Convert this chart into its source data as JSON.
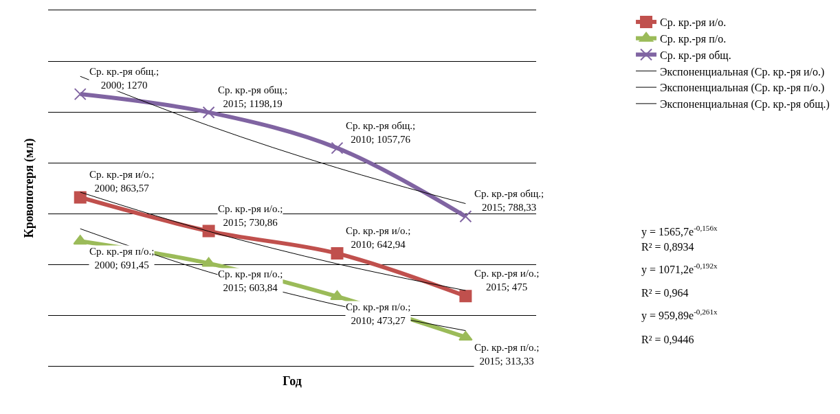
{
  "chart_data": {
    "type": "line",
    "xlabel": "Год",
    "ylabel": "Кровопотеря (мл)",
    "categories": [
      null,
      null,
      null,
      null
    ],
    "ylim": [
      200,
      1600
    ],
    "grid": "y",
    "legend": "right",
    "tick_labels": false,
    "series": [
      {
        "name": "Ср. кр.-ря и/о.",
        "color": "#c0504d",
        "marker": "square",
        "values": [
          863.57,
          730.86,
          642.94,
          475
        ],
        "value_labels": [
          "Ср. кр.-ря и/о.; 2000; 863,57",
          "Ср. кр.-ря и/о.; 2015; 730,86",
          "Ср. кр.-ря и/о.; 2010; 642,94",
          "Ср. кр.-ря и/о.; 2015; 475"
        ]
      },
      {
        "name": "Ср. кр.-ря п/о.",
        "color": "#9bbb59",
        "marker": "triangle",
        "values": [
          691.45,
          603.84,
          473.27,
          313.33
        ],
        "value_labels": [
          "Ср. кр.-ря п/о.; 2000; 691,45",
          "Ср. кр.-ря п/о.; 2015; 603,84",
          "Ср. кр.-ря п/о.; 2010; 473,27",
          "Ср. кр.-ря п/о.; 2015; 313,33"
        ]
      },
      {
        "name": "Ср. кр.-ря общ.",
        "color": "#8064a2",
        "marker": "cross",
        "values": [
          1270,
          1198.19,
          1057.76,
          788.33
        ],
        "value_labels": [
          "Ср. кр.-ря общ.; 2000; 1270",
          "Ср. кр.-ря общ.; 2015; 1198,19",
          "Ср. кр.-ря общ.; 2010; 1057,76",
          "Ср. кр.-ря общ.; 2015; 788,33"
        ]
      },
      {
        "name": "Экспоненциальная (Ср. кр.-ря и/о.)",
        "color": "#000000",
        "marker": "none",
        "values": [
          884,
          730,
          602,
          497
        ]
      },
      {
        "name": "Экспоненциальная (Ср. кр.-ря п/о.)",
        "color": "#000000",
        "marker": "none",
        "values": [
          740,
          570,
          440,
          339
        ]
      },
      {
        "name": "Экспоненциальная (Ср. кр.-ря общ.)",
        "color": "#000000",
        "marker": "none",
        "values": [
          1340,
          1146,
          980,
          839
        ]
      }
    ],
    "annotations": [
      "y = 1565,7e$^{-0,156x}$",
      "R² = 0,8934",
      "y = 1071,2e$^{-0,192x}$",
      "R² = 0,964",
      "y = 959,89e$^{-0,261x}$",
      "R² = 0,9446"
    ]
  }
}
